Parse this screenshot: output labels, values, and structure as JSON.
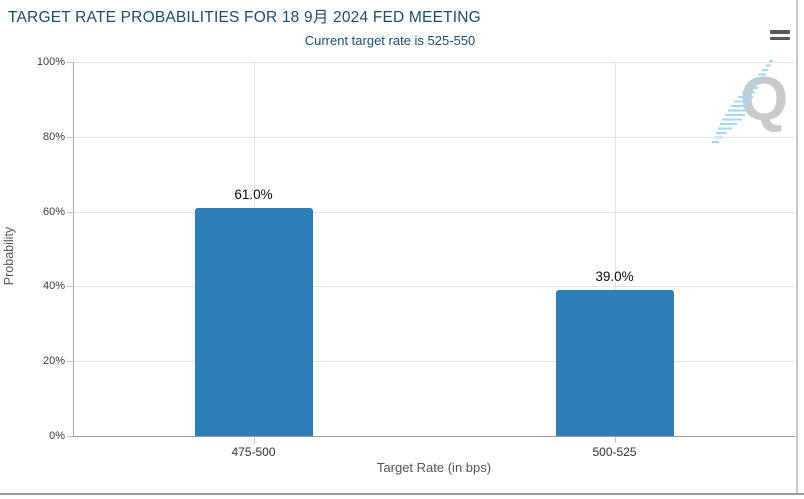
{
  "header": {
    "title": "TARGET RATE PROBABILITIES FOR 18 9月 2024 FED MEETING",
    "subtitle": "Current target rate is 525-550",
    "menu_icon": "hamburger-icon"
  },
  "watermark": {
    "letter": "Q"
  },
  "colors": {
    "bar": "#2d7fb8",
    "title_text": "#1d4b6e",
    "grid": "#e4e4e4",
    "axis_line": "#999999",
    "tick_label": "#3d3d3d",
    "axis_title": "#555555",
    "value_label": "#0d0d0d",
    "watermark_q": "#cacaca",
    "watermark_swoosh": "#a5d9f2"
  },
  "chart_data": {
    "type": "bar",
    "title": "TARGET RATE PROBABILITIES FOR 18 9月 2024 FED MEETING",
    "subtitle": "Current target rate is 525-550",
    "categories": [
      "475-500",
      "500-525"
    ],
    "values": [
      61.0,
      39.0
    ],
    "value_labels": [
      "61.0%",
      "39.0%"
    ],
    "xlabel": "Target Rate (in bps)",
    "ylabel": "Probability",
    "ylim": [
      0,
      100
    ],
    "ytick_labels": [
      "0%",
      "20%",
      "40%",
      "60%",
      "80%",
      "100%"
    ],
    "grid": true,
    "legend": "none"
  }
}
